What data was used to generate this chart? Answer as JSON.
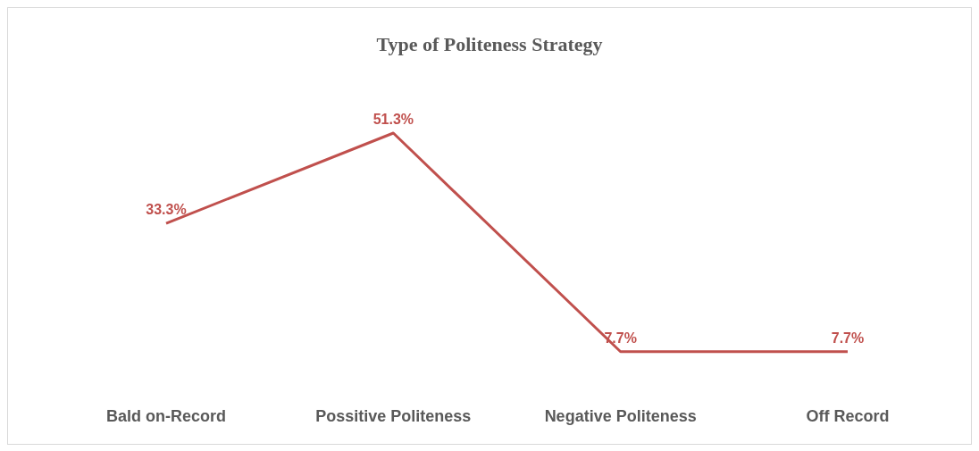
{
  "chart_data": {
    "type": "line",
    "title": "Type of Politeness Strategy",
    "categories": [
      "Bald on-Record",
      "Possitive Politeness",
      "Negative Politeness",
      "Off Record"
    ],
    "series": [
      {
        "color": "#c0504d",
        "values": [
          33.3,
          51.3,
          7.7,
          7.7
        ],
        "value_labels": [
          "33.3%",
          "51.3%",
          "7.7%",
          "7.7%"
        ]
      }
    ],
    "grid": false,
    "legend": false,
    "line_style": "solid"
  }
}
